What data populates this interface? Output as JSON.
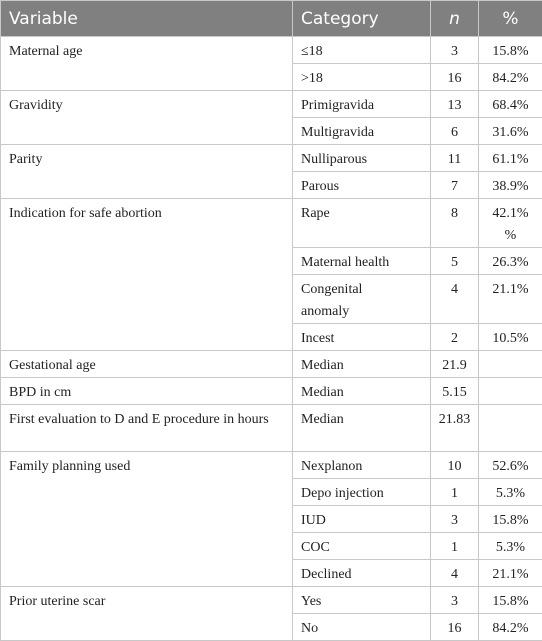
{
  "header": [
    "Variable",
    "Category",
    "n",
    "%"
  ],
  "groups": [
    {
      "variable": "Maternal age",
      "rows": [
        [
          "≤18",
          "3",
          "15.8%"
        ],
        [
          ">18",
          "16",
          "84.2%"
        ]
      ]
    },
    {
      "variable": "Gravidity",
      "rows": [
        [
          "Primigravida",
          "13",
          "68.4%"
        ],
        [
          "Multigravida",
          "6",
          "31.6%"
        ]
      ]
    },
    {
      "variable": "Parity",
      "rows": [
        [
          "Nulliparous",
          "11",
          "61.1%"
        ],
        [
          "Parous",
          "7",
          "38.9%"
        ]
      ]
    },
    {
      "variable": "Indication for safe abortion",
      "rows": [
        [
          "Rape",
          "8",
          "42.1%\n%"
        ],
        [
          "Maternal health",
          "5",
          "26.3%"
        ],
        [
          "Congenital\nanomaly",
          "4",
          "21.1%"
        ],
        [
          "Incest",
          "2",
          "10.5%"
        ]
      ]
    },
    {
      "variable": "Gestational age",
      "rows": [
        [
          "Median",
          "21.9"
        ]
      ]
    },
    {
      "variable": "BPD in cm",
      "rows": [
        [
          "Median",
          "5.15"
        ]
      ]
    },
    {
      "variable": "First evaluation to D and E procedure in hours",
      "rows": [
        [
          "Median",
          "21.83"
        ]
      ]
    },
    {
      "variable": "Family planning used",
      "rows": [
        [
          "Nexplanon",
          "10",
          "52.6%"
        ],
        [
          "Depo injection",
          "1",
          "5.3%"
        ],
        [
          "IUD",
          "3",
          "15.8%"
        ],
        [
          "COC",
          "1",
          "5.3%"
        ],
        [
          "Declined",
          "4",
          "21.1%"
        ]
      ]
    },
    {
      "variable": "Prior uterine scar",
      "rows": [
        [
          "Yes",
          "3",
          "15.8%"
        ],
        [
          "No",
          "16",
          "84.2%"
        ]
      ]
    }
  ]
}
